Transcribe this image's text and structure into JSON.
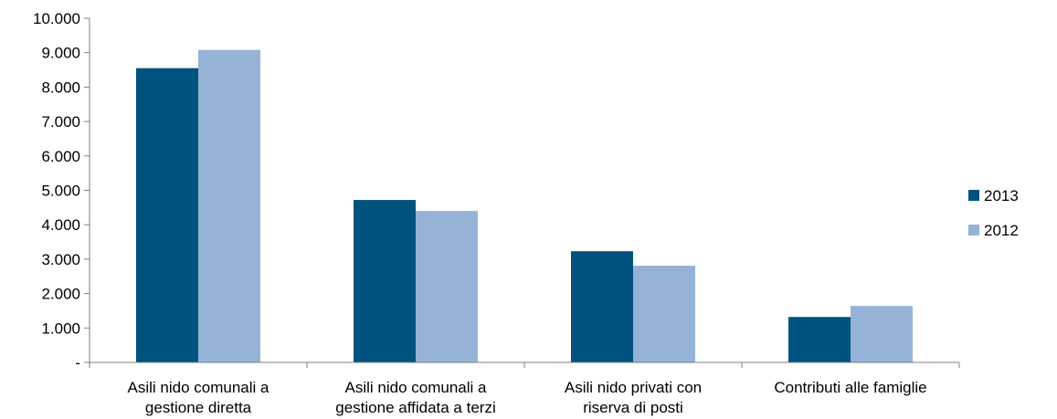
{
  "chart_data": {
    "type": "bar",
    "categories": [
      [
        "Asili nido comunali a",
        "gestione diretta"
      ],
      [
        "Asili nido comunali a",
        "gestione affidata a terzi"
      ],
      [
        "Asili nido privati con",
        "riserva di posti"
      ],
      [
        "Contributi alle famiglie"
      ]
    ],
    "series": [
      {
        "name": "2013",
        "color": "#00527f",
        "values": [
          8550,
          4720,
          3230,
          1320
        ]
      },
      {
        "name": "2012",
        "color": "#95b3d7",
        "values": [
          9080,
          4400,
          2810,
          1640
        ]
      }
    ],
    "ylim": [
      0,
      10000
    ],
    "yticks": [
      0,
      1000,
      2000,
      3000,
      4000,
      5000,
      6000,
      7000,
      8000,
      9000,
      10000
    ],
    "ytick_labels": [
      "-",
      "1.000",
      "2.000",
      "3.000",
      "4.000",
      "5.000",
      "6.000",
      "7.000",
      "8.000",
      "9.000",
      "10.000"
    ],
    "title": "",
    "xlabel": "",
    "ylabel": "",
    "grid": false,
    "legend_position": "right"
  }
}
